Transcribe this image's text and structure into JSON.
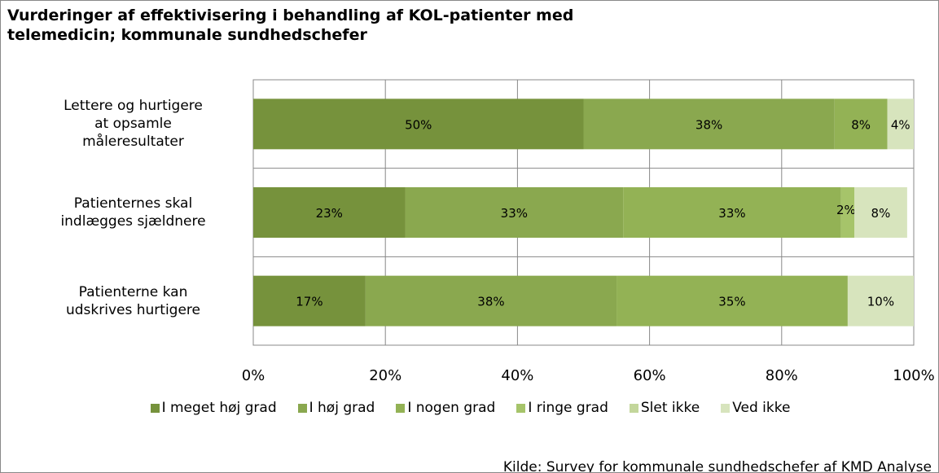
{
  "chart_data": {
    "type": "stacked_barh",
    "title": "Vurderinger af effektivisering i behandling af KOL-patienter med\ntelemedicin; kommunale sundhedschefer",
    "categories": [
      "Lettere og hurtigere\nat opsamle\nmåleresultater",
      "Patienternes skal\nindlægges sjældnere",
      "Patienterne kan\nudskrives hurtigere"
    ],
    "series": [
      {
        "name": "I meget høj grad",
        "color": "#76923c",
        "values": [
          50,
          23,
          17
        ],
        "value_labels": [
          "50%",
          "23%",
          "17%"
        ]
      },
      {
        "name": "I høj grad",
        "color": "#8aa84f",
        "values": [
          38,
          33,
          38
        ],
        "value_labels": [
          "38%",
          "33%",
          "38%"
        ]
      },
      {
        "name": "I nogen grad",
        "color": "#93b255",
        "values": [
          8,
          33,
          35
        ],
        "value_labels": [
          "8%",
          "33%",
          "35%"
        ]
      },
      {
        "name": "I ringe grad",
        "color": "#a6c46a",
        "values": [
          0,
          2,
          0
        ],
        "value_labels": [
          null,
          "2%",
          null
        ]
      },
      {
        "name": "Slet ikke",
        "color": "#c3d69b",
        "values": [
          0,
          0,
          0
        ],
        "value_labels": [
          null,
          null,
          null
        ]
      },
      {
        "name": "Ved ikke",
        "color": "#d7e4bd",
        "values": [
          4,
          8,
          10
        ],
        "value_labels": [
          "4%",
          "8%",
          "10%"
        ]
      }
    ],
    "xlim": [
      0,
      100
    ],
    "xticks": [
      {
        "value": 0,
        "label": "0%"
      },
      {
        "value": 20,
        "label": "20%"
      },
      {
        "value": 40,
        "label": "40%"
      },
      {
        "value": 60,
        "label": "60%"
      },
      {
        "value": 80,
        "label": "80%"
      },
      {
        "value": 100,
        "label": "100%"
      }
    ],
    "grid": true,
    "source": "Kilde: Survey for kommunale sundhedschefer af KMD Analyse"
  }
}
